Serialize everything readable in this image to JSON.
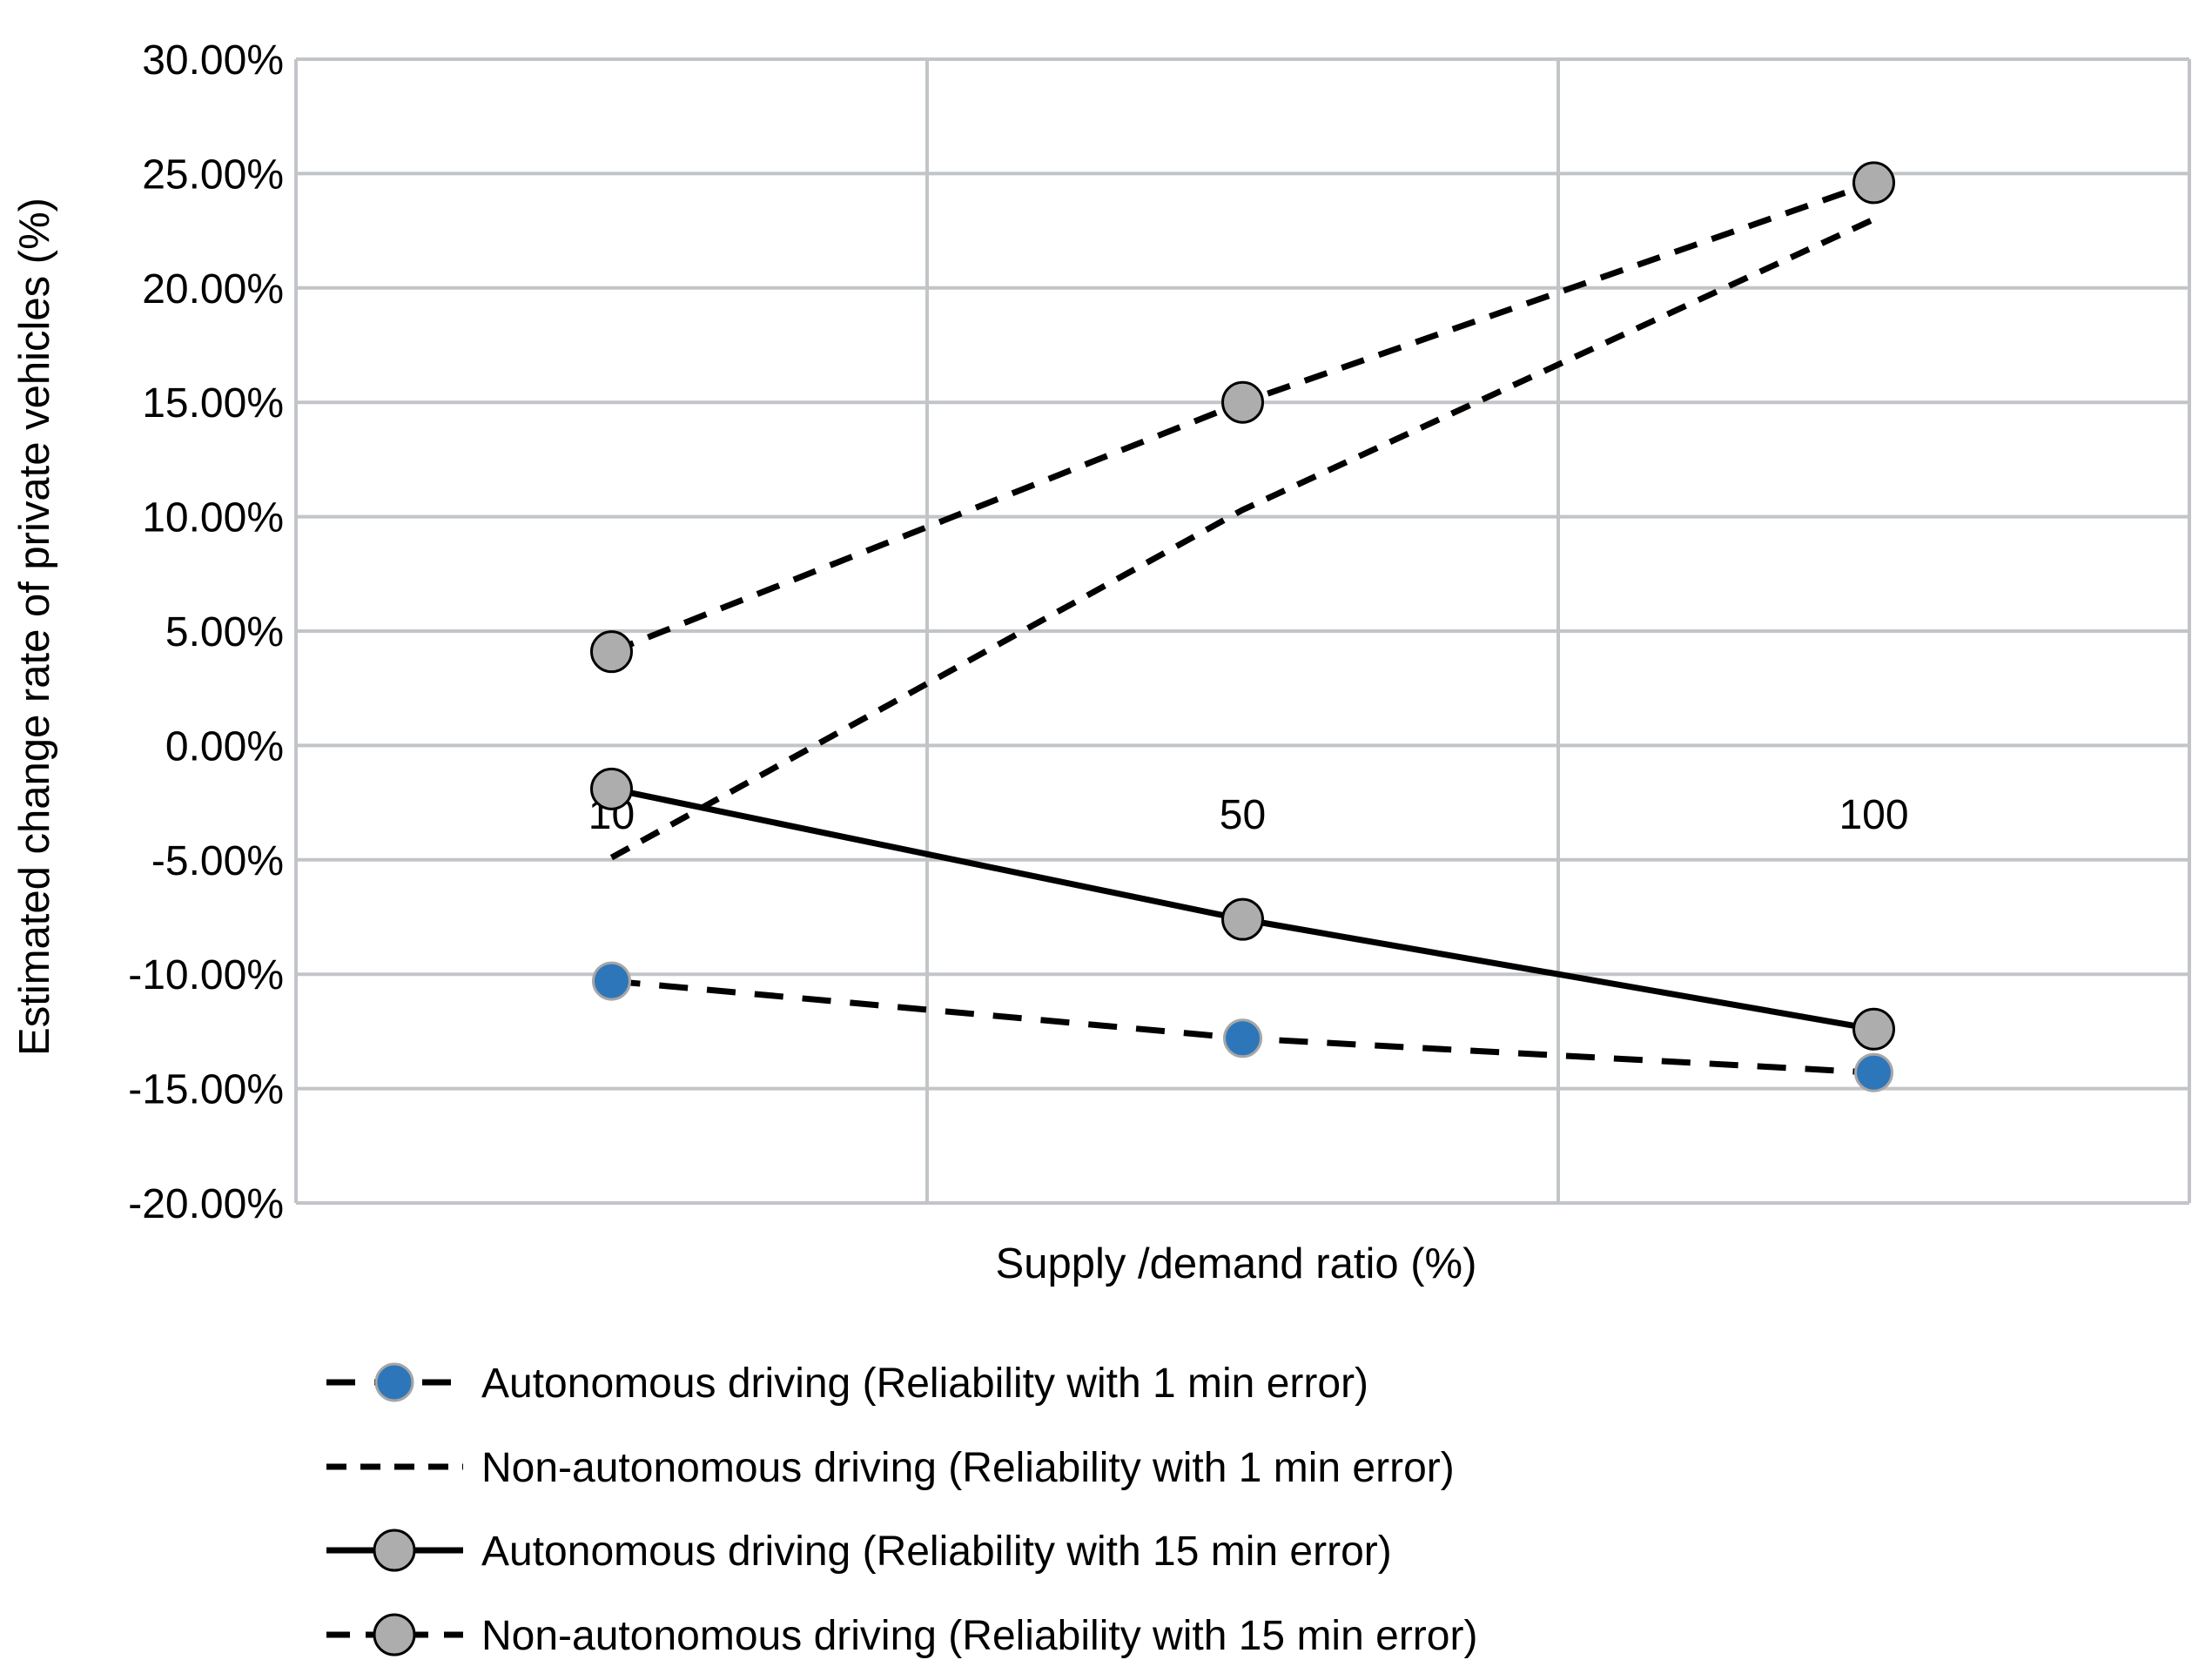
{
  "chart_data": {
    "type": "line",
    "title": "",
    "xlabel": "Supply /demand ratio (%)",
    "ylabel": "Estimated change rate of private vehicles (%)",
    "categories": [
      "10",
      "50",
      "100"
    ],
    "y_axis": {
      "min": -20,
      "max": 30,
      "step": 5,
      "tick_labels": [
        "30.00%",
        "25.00%",
        "20.00%",
        "15.00%",
        "10.00%",
        "5.00%",
        "0.00%",
        "-5.00%",
        "-10.00%",
        "-15.00%",
        "-20.00%"
      ]
    },
    "grid": true,
    "legend_position": "bottom-left",
    "series": [
      {
        "name": "Autonomous driving (Reliability with 1 min error)",
        "values": [
          -10.3,
          -12.8,
          -14.3
        ],
        "unit": "%",
        "line_style": "dashed",
        "line_color": "#000000",
        "marker": "circle",
        "marker_fill": "#2E76BA",
        "marker_stroke": "#A6A6A6"
      },
      {
        "name": "Non-autonomous driving (Reliability with 1 min error)",
        "values": [
          -4.9,
          10.3,
          23.0
        ],
        "unit": "%",
        "line_style": "dashed",
        "line_color": "#000000",
        "marker": "none"
      },
      {
        "name": "Autonomous driving (Reliability with 15 min error)",
        "values": [
          -1.9,
          -7.6,
          -12.4
        ],
        "unit": "%",
        "line_style": "solid",
        "line_color": "#000000",
        "marker": "circle",
        "marker_fill": "#ADADAD",
        "marker_stroke": "#000000"
      },
      {
        "name": "Non-autonomous driving (Reliability with 15 min error)",
        "values": [
          4.1,
          15.0,
          24.6
        ],
        "unit": "%",
        "line_style": "dashed",
        "line_color": "#000000",
        "marker": "circle",
        "marker_fill": "#ADADAD",
        "marker_stroke": "#000000"
      }
    ],
    "colors": {
      "gridline": "#C2C5C8",
      "axis_text": "#000000",
      "background": "#FFFFFF"
    }
  }
}
